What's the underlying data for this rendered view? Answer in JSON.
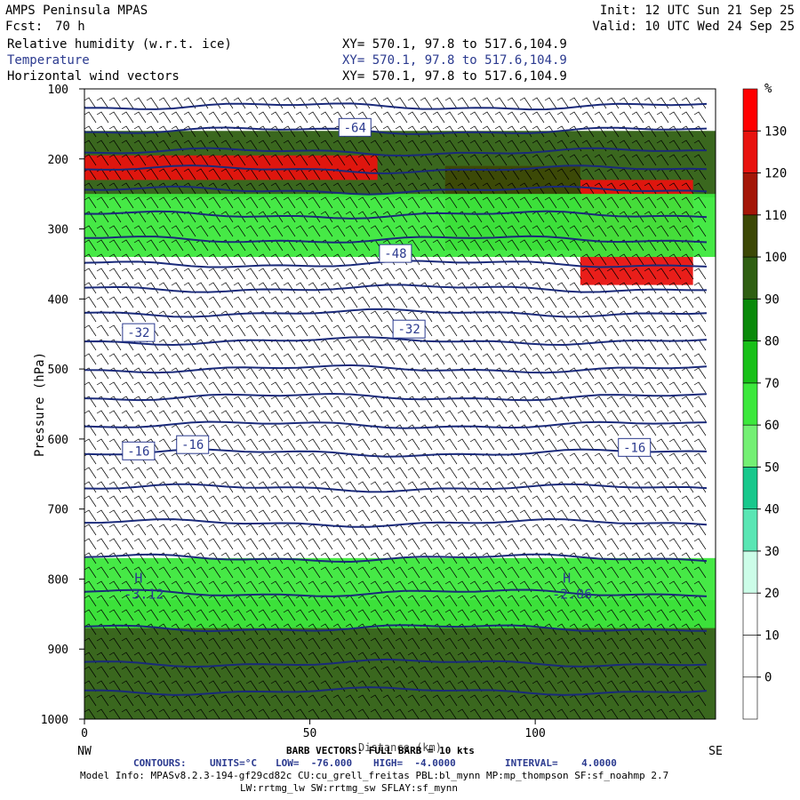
{
  "header": {
    "title": "AMPS Peninsula MPAS",
    "fcst_label": "Fcst:",
    "fcst_value": "70 h",
    "init": "Init: 12 UTC Sun 21 Sep 25",
    "valid": "Valid: 10 UTC Wed 24 Sep 25",
    "fields": [
      {
        "name": "Relative humidity (w.r.t. ice)",
        "xy": "XY= 570.1, 97.8 to 517.6,104.9"
      },
      {
        "name": "Temperature",
        "xy": "XY= 570.1, 97.8 to 517.6,104.9"
      },
      {
        "name": "Horizontal wind vectors",
        "xy": "XY= 570.1, 97.8 to 517.6,104.9"
      }
    ]
  },
  "chart_data": {
    "type": "heatmap",
    "title": "Relative humidity (w.r.t. ice), Temperature, Horizontal wind vectors",
    "xlabel": "Distance (km)",
    "ylabel": "Pressure (hPa)",
    "xlim": [
      0,
      140
    ],
    "ylim": [
      1000,
      100
    ],
    "x_ticks": [
      0,
      50,
      100
    ],
    "y_ticks": [
      100,
      200,
      300,
      400,
      500,
      600,
      700,
      800,
      900,
      1000
    ],
    "x_end_labels": {
      "left": "NW",
      "right": "SE"
    },
    "colorbar": {
      "unit": "%",
      "levels": [
        0,
        10,
        20,
        30,
        40,
        50,
        60,
        70,
        80,
        90,
        100,
        110,
        120,
        130
      ],
      "colors": [
        "#ffffff",
        "#ffffff",
        "#ffffff",
        "#ccfde8",
        "#5ae6b4",
        "#18c88c",
        "#74f074",
        "#3ce83c",
        "#18c018",
        "#0a8a0a",
        "#2f5f12",
        "#3c4806",
        "#a41608",
        "#e8120e",
        "#ff0000"
      ]
    },
    "humidity_regions": [
      {
        "x": [
          0,
          140
        ],
        "p": [
          1000,
          830
        ],
        "rh": 95
      },
      {
        "x": [
          0,
          140
        ],
        "p": [
          870,
          770
        ],
        "rh": 65
      },
      {
        "x": [
          0,
          140
        ],
        "p": [
          255,
          160
        ],
        "rh": 95
      },
      {
        "x": [
          0,
          65
        ],
        "p": [
          230,
          195
        ],
        "rh": 125
      },
      {
        "x": [
          110,
          135
        ],
        "p": [
          380,
          230
        ],
        "rh": 125
      },
      {
        "x": [
          80,
          110
        ],
        "p": [
          330,
          210
        ],
        "rh": 105
      },
      {
        "x": [
          0,
          140
        ],
        "p": [
          340,
          250
        ],
        "rh": 60
      }
    ],
    "temperature_contours": {
      "units": "°C",
      "low": "-76.000",
      "high": "-4.0000",
      "interval": "4.0000",
      "labels": [
        {
          "text": "-64",
          "x": 60,
          "p": 155
        },
        {
          "text": "-48",
          "x": 69,
          "p": 335
        },
        {
          "text": "-32",
          "x": 12,
          "p": 448
        },
        {
          "text": "-32",
          "x": 72,
          "p": 443
        },
        {
          "text": "-16",
          "x": 12,
          "p": 617
        },
        {
          "text": "-16",
          "x": 24,
          "p": 608
        },
        {
          "text": "-16",
          "x": 122,
          "p": 612
        }
      ],
      "pressure_levels": [
        125,
        160,
        190,
        215,
        245,
        280,
        315,
        350,
        385,
        420,
        460,
        500,
        540,
        580,
        620,
        670,
        720,
        770,
        820,
        870,
        920,
        960
      ]
    },
    "highs": [
      {
        "symbol": "H",
        "value": "-3.12",
        "x": 12,
        "p": 815
      },
      {
        "symbol": "H",
        "value": "-2.06",
        "x": 107,
        "p": 815
      }
    ],
    "barb_vectors": "BARB VECTORS: FULL BARB = 10 kts",
    "contours_line": {
      "label": "CONTOURS:",
      "units": "UNITS=°C",
      "low": "LOW=  -76.000",
      "high": "HIGH=  -4.0000",
      "interval": "INTERVAL=    4.0000"
    }
  },
  "footer": {
    "model_info_1": "Model Info: MPASv8.2.3-194-gf29cd82c CU:cu_grell_freitas PBL:bl_mynn MP:mp_thompson SF:sf_noahmp 2.7",
    "model_info_2": "LW:rrtmg_lw SW:rrtmg_sw SFLAY:sf_mynn"
  },
  "style": {
    "contour_color": "#1a2a7a",
    "label_color": "#2b3a8f"
  }
}
